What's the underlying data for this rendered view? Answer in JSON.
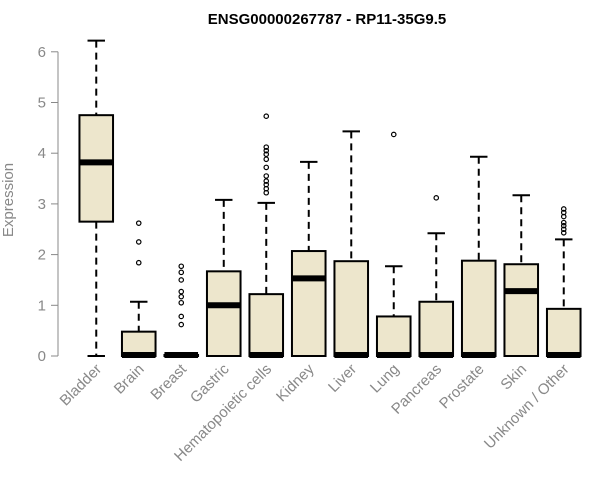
{
  "chart_data": {
    "type": "boxplot",
    "title": "ENSG00000267787 - RP11-35G9.5",
    "xlabel": "",
    "ylabel": "Expression",
    "ylim": [
      0,
      6.3
    ],
    "yticks": [
      0,
      1,
      2,
      3,
      4,
      5,
      6
    ],
    "grid": false,
    "box_fill": "#EDE6CC",
    "categories": [
      "Bladder",
      "Brain",
      "Breast",
      "Gastric",
      "Hematopoietic cells",
      "Kidney",
      "Liver",
      "Lung",
      "Pancreas",
      "Prostate",
      "Skin",
      "Unknown / Other"
    ],
    "boxes": [
      {
        "whisker_low": 0,
        "q1": 2.65,
        "median": 3.82,
        "q3": 4.75,
        "whisker_high": 6.22,
        "outliers": []
      },
      {
        "whisker_low": 0,
        "q1": 0,
        "median": 0.02,
        "q3": 0.48,
        "whisker_high": 1.07,
        "outliers": [
          1.84,
          2.25,
          2.62
        ]
      },
      {
        "whisker_low": 0,
        "q1": 0,
        "median": 0.02,
        "q3": 0.02,
        "whisker_high": 0.02,
        "outliers": [
          0.62,
          0.78,
          1.05,
          1.17,
          1.27,
          1.5,
          1.65,
          1.77
        ]
      },
      {
        "whisker_low": 0,
        "q1": 0,
        "median": 1.0,
        "q3": 1.67,
        "whisker_high": 3.08,
        "outliers": []
      },
      {
        "whisker_low": 0,
        "q1": 0,
        "median": 0.02,
        "q3": 1.22,
        "whisker_high": 3.02,
        "outliers": [
          3.22,
          3.3,
          3.38,
          3.45,
          3.55,
          3.72,
          3.88,
          3.98,
          4.05,
          4.12,
          4.73
        ]
      },
      {
        "whisker_low": 0,
        "q1": 0,
        "median": 1.53,
        "q3": 2.07,
        "whisker_high": 3.83,
        "outliers": []
      },
      {
        "whisker_low": 0,
        "q1": 0,
        "median": 0.02,
        "q3": 1.87,
        "whisker_high": 4.43,
        "outliers": []
      },
      {
        "whisker_low": 0,
        "q1": 0,
        "median": 0.02,
        "q3": 0.78,
        "whisker_high": 1.77,
        "outliers": [
          4.37
        ]
      },
      {
        "whisker_low": 0,
        "q1": 0,
        "median": 0.02,
        "q3": 1.07,
        "whisker_high": 2.42,
        "outliers": [
          3.12
        ]
      },
      {
        "whisker_low": 0,
        "q1": 0,
        "median": 0.02,
        "q3": 1.88,
        "whisker_high": 3.93,
        "outliers": []
      },
      {
        "whisker_low": 0,
        "q1": 0,
        "median": 1.28,
        "q3": 1.81,
        "whisker_high": 3.17,
        "outliers": []
      },
      {
        "whisker_low": 0,
        "q1": 0,
        "median": 0.02,
        "q3": 0.93,
        "whisker_high": 2.3,
        "outliers": [
          2.43,
          2.5,
          2.57,
          2.63,
          2.75,
          2.83,
          2.9
        ]
      }
    ]
  }
}
